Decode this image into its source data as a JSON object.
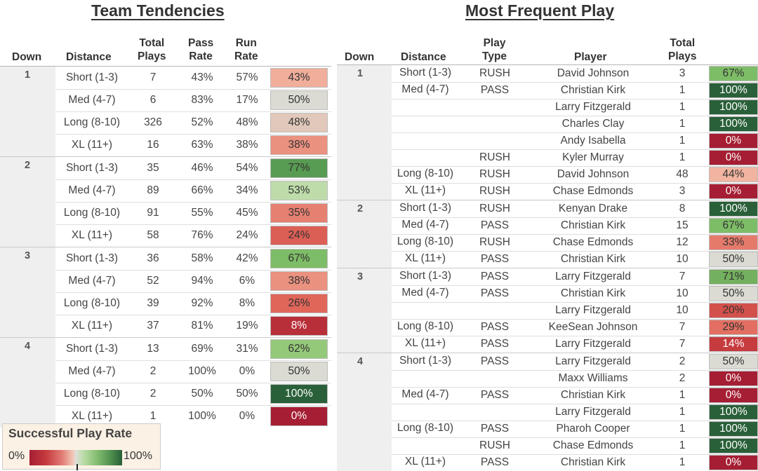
{
  "left_title": "Team Tendencies",
  "right_title": "Most Frequent Play",
  "left_headers": {
    "down": "Down",
    "distance": "Distance",
    "total_plays": [
      "Total",
      "Plays"
    ],
    "pass_rate": [
      "Pass",
      "Rate"
    ],
    "run_rate": [
      "Run",
      "Rate"
    ]
  },
  "right_headers": {
    "down": "Down",
    "distance": "Distance",
    "play_type": [
      "Play",
      "Type"
    ],
    "player": "Player",
    "total_plays": [
      "Total",
      "Plays"
    ]
  },
  "legend": {
    "title": "Successful Play Rate",
    "min": "0%",
    "max": "100%"
  },
  "chart_data": [
    {
      "type": "table",
      "title": "Team Tendencies",
      "columns": [
        "Down",
        "Distance",
        "Total Plays",
        "Pass Rate",
        "Run Rate",
        "Successful Play Rate"
      ],
      "groups": [
        {
          "down": "1",
          "rows": [
            {
              "distance": "Short (1-3)",
              "total": "7",
              "pass": "43%",
              "run": "57%",
              "success": 43
            },
            {
              "distance": "Med (4-7)",
              "total": "6",
              "pass": "83%",
              "run": "17%",
              "success": 50
            },
            {
              "distance": "Long (8-10)",
              "total": "326",
              "pass": "52%",
              "run": "48%",
              "success": 48
            },
            {
              "distance": "XL (11+)",
              "total": "16",
              "pass": "63%",
              "run": "38%",
              "success": 38
            }
          ]
        },
        {
          "down": "2",
          "rows": [
            {
              "distance": "Short (1-3)",
              "total": "35",
              "pass": "46%",
              "run": "54%",
              "success": 77
            },
            {
              "distance": "Med (4-7)",
              "total": "89",
              "pass": "66%",
              "run": "34%",
              "success": 53
            },
            {
              "distance": "Long (8-10)",
              "total": "91",
              "pass": "55%",
              "run": "45%",
              "success": 35
            },
            {
              "distance": "XL (11+)",
              "total": "58",
              "pass": "76%",
              "run": "24%",
              "success": 24
            }
          ]
        },
        {
          "down": "3",
          "rows": [
            {
              "distance": "Short (1-3)",
              "total": "36",
              "pass": "58%",
              "run": "42%",
              "success": 67
            },
            {
              "distance": "Med (4-7)",
              "total": "52",
              "pass": "94%",
              "run": "6%",
              "success": 38
            },
            {
              "distance": "Long (8-10)",
              "total": "39",
              "pass": "92%",
              "run": "8%",
              "success": 26
            },
            {
              "distance": "XL (11+)",
              "total": "37",
              "pass": "81%",
              "run": "19%",
              "success": 8
            }
          ]
        },
        {
          "down": "4",
          "rows": [
            {
              "distance": "Short (1-3)",
              "total": "13",
              "pass": "69%",
              "run": "31%",
              "success": 62
            },
            {
              "distance": "Med (4-7)",
              "total": "2",
              "pass": "100%",
              "run": "0%",
              "success": 50
            },
            {
              "distance": "Long (8-10)",
              "total": "2",
              "pass": "50%",
              "run": "50%",
              "success": 100
            },
            {
              "distance": "XL (11+)",
              "total": "1",
              "pass": "100%",
              "run": "0%",
              "success": 0
            }
          ]
        }
      ]
    },
    {
      "type": "table",
      "title": "Most Frequent Play",
      "columns": [
        "Down",
        "Distance",
        "Play Type",
        "Player",
        "Total Plays",
        "Successful Play Rate"
      ],
      "groups": [
        {
          "down": "1",
          "rows": [
            {
              "distance": "Short (1-3)",
              "type": "RUSH",
              "player": "David Johnson",
              "total": "3",
              "success": 67
            },
            {
              "distance": "Med (4-7)",
              "type": "PASS",
              "player": "Christian Kirk",
              "total": "1",
              "success": 100
            },
            {
              "distance": "",
              "type": "",
              "player": "Larry Fitzgerald",
              "total": "1",
              "success": 100
            },
            {
              "distance": "",
              "type": "",
              "player": "Charles Clay",
              "total": "1",
              "success": 100
            },
            {
              "distance": "",
              "type": "",
              "player": "Andy Isabella",
              "total": "1",
              "success": 0
            },
            {
              "distance": "",
              "type": "RUSH",
              "player": "Kyler Murray",
              "total": "1",
              "success": 0
            },
            {
              "distance": "Long (8-10)",
              "type": "RUSH",
              "player": "David Johnson",
              "total": "48",
              "success": 44
            },
            {
              "distance": "XL (11+)",
              "type": "RUSH",
              "player": "Chase Edmonds",
              "total": "3",
              "success": 0
            }
          ]
        },
        {
          "down": "2",
          "rows": [
            {
              "distance": "Short (1-3)",
              "type": "RUSH",
              "player": "Kenyan Drake",
              "total": "8",
              "success": 100
            },
            {
              "distance": "Med (4-7)",
              "type": "PASS",
              "player": "Christian Kirk",
              "total": "15",
              "success": 67
            },
            {
              "distance": "Long (8-10)",
              "type": "RUSH",
              "player": "Chase Edmonds",
              "total": "12",
              "success": 33
            },
            {
              "distance": "XL (11+)",
              "type": "PASS",
              "player": "Christian Kirk",
              "total": "10",
              "success": 50
            }
          ]
        },
        {
          "down": "3",
          "rows": [
            {
              "distance": "Short (1-3)",
              "type": "PASS",
              "player": "Larry Fitzgerald",
              "total": "7",
              "success": 71
            },
            {
              "distance": "Med (4-7)",
              "type": "PASS",
              "player": "Christian Kirk",
              "total": "10",
              "success": 50
            },
            {
              "distance": "",
              "type": "",
              "player": "Larry Fitzgerald",
              "total": "10",
              "success": 20
            },
            {
              "distance": "Long (8-10)",
              "type": "PASS",
              "player": "KeeSean Johnson",
              "total": "7",
              "success": 29
            },
            {
              "distance": "XL (11+)",
              "type": "PASS",
              "player": "Larry Fitzgerald",
              "total": "7",
              "success": 14
            }
          ]
        },
        {
          "down": "4",
          "rows": [
            {
              "distance": "Short (1-3)",
              "type": "PASS",
              "player": "Larry Fitzgerald",
              "total": "2",
              "success": 50
            },
            {
              "distance": "",
              "type": "",
              "player": "Maxx Williams",
              "total": "2",
              "success": 0
            },
            {
              "distance": "Med (4-7)",
              "type": "PASS",
              "player": "Christian Kirk",
              "total": "1",
              "success": 0
            },
            {
              "distance": "",
              "type": "",
              "player": "Larry Fitzgerald",
              "total": "1",
              "success": 100
            },
            {
              "distance": "Long (8-10)",
              "type": "PASS",
              "player": "Pharoh Cooper",
              "total": "1",
              "success": 100
            },
            {
              "distance": "",
              "type": "RUSH",
              "player": "Chase Edmonds",
              "total": "1",
              "success": 100
            },
            {
              "distance": "XL (11+)",
              "type": "PASS",
              "player": "Christian Kirk",
              "total": "1",
              "success": 0
            }
          ]
        }
      ]
    }
  ]
}
